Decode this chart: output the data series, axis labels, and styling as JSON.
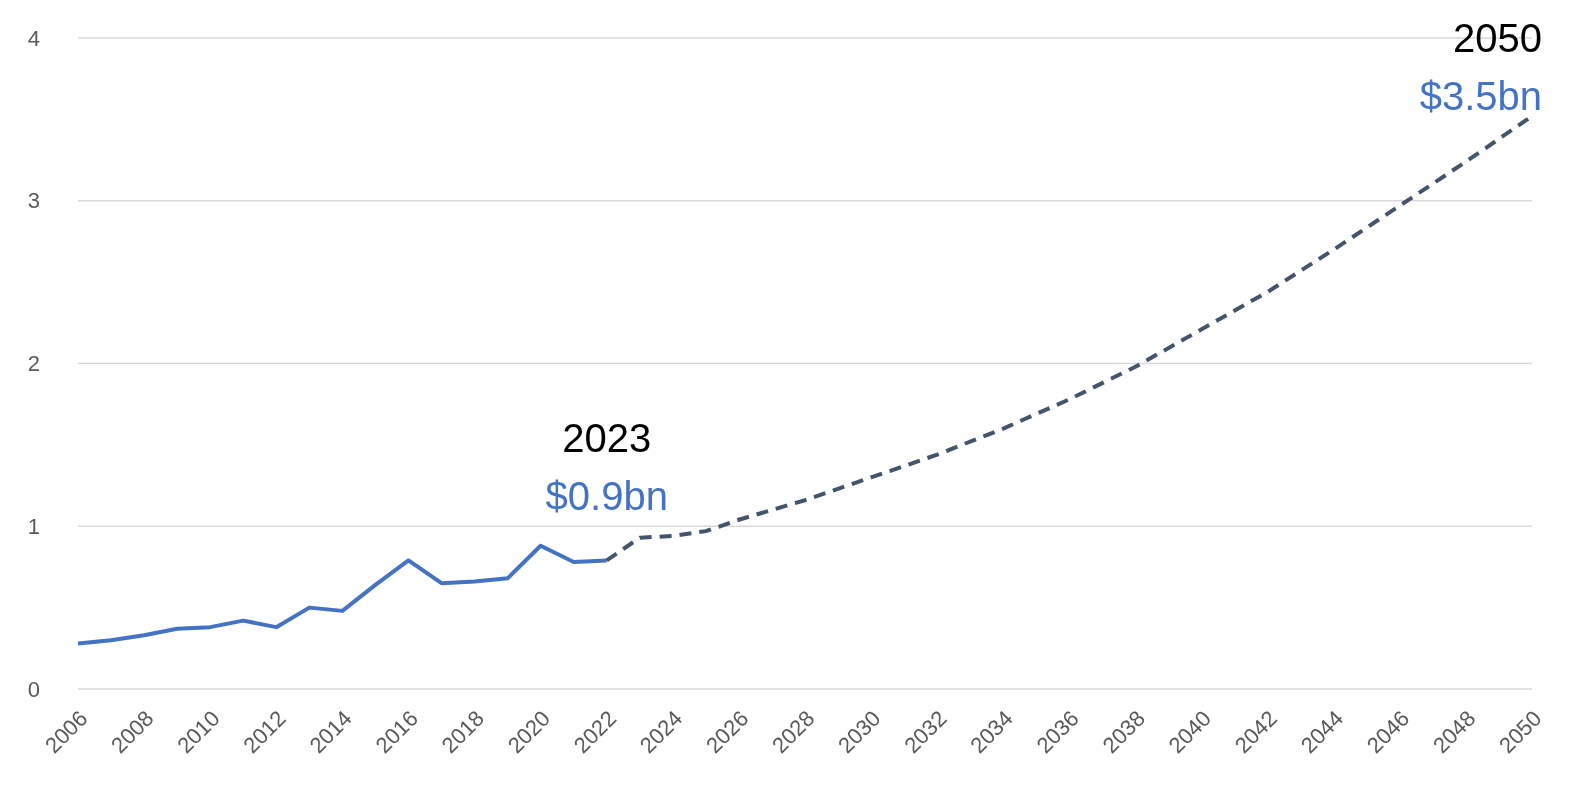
{
  "chart_data": {
    "type": "line",
    "xlim": [
      2006,
      2050
    ],
    "xticks": [
      2006,
      2008,
      2010,
      2012,
      2014,
      2016,
      2018,
      2020,
      2022,
      2024,
      2026,
      2028,
      2030,
      2032,
      2034,
      2036,
      2038,
      2040,
      2042,
      2044,
      2046,
      2048,
      2050
    ],
    "ylim": [
      0,
      4
    ],
    "yticks": [
      0,
      1,
      2,
      3,
      4
    ],
    "grid": "y",
    "series": [
      {
        "color": "#4472c4",
        "line_style": "solid",
        "x": [
          2006,
          2007,
          2008,
          2009,
          2010,
          2011,
          2012,
          2013,
          2014,
          2015,
          2016,
          2017,
          2018,
          2019,
          2020,
          2021,
          2022
        ],
        "values": [
          0.28,
          0.3,
          0.33,
          0.37,
          0.38,
          0.42,
          0.38,
          0.5,
          0.48,
          0.64,
          0.79,
          0.65,
          0.66,
          0.68,
          0.88,
          0.78,
          0.79
        ]
      },
      {
        "color": "#44546a",
        "line_style": "dashed",
        "x": [
          2022,
          2023,
          2024,
          2025,
          2026,
          2027,
          2028,
          2029,
          2030,
          2032,
          2034,
          2036,
          2038,
          2040,
          2042,
          2044,
          2046,
          2048,
          2050
        ],
        "values": [
          0.79,
          0.93,
          0.94,
          0.97,
          1.04,
          1.1,
          1.16,
          1.23,
          1.3,
          1.44,
          1.6,
          1.78,
          1.98,
          2.21,
          2.44,
          2.7,
          2.97,
          3.24,
          3.52
        ]
      }
    ],
    "annotations": [
      "2023",
      "$0.9bn",
      "2050",
      "$3.5bn"
    ]
  }
}
